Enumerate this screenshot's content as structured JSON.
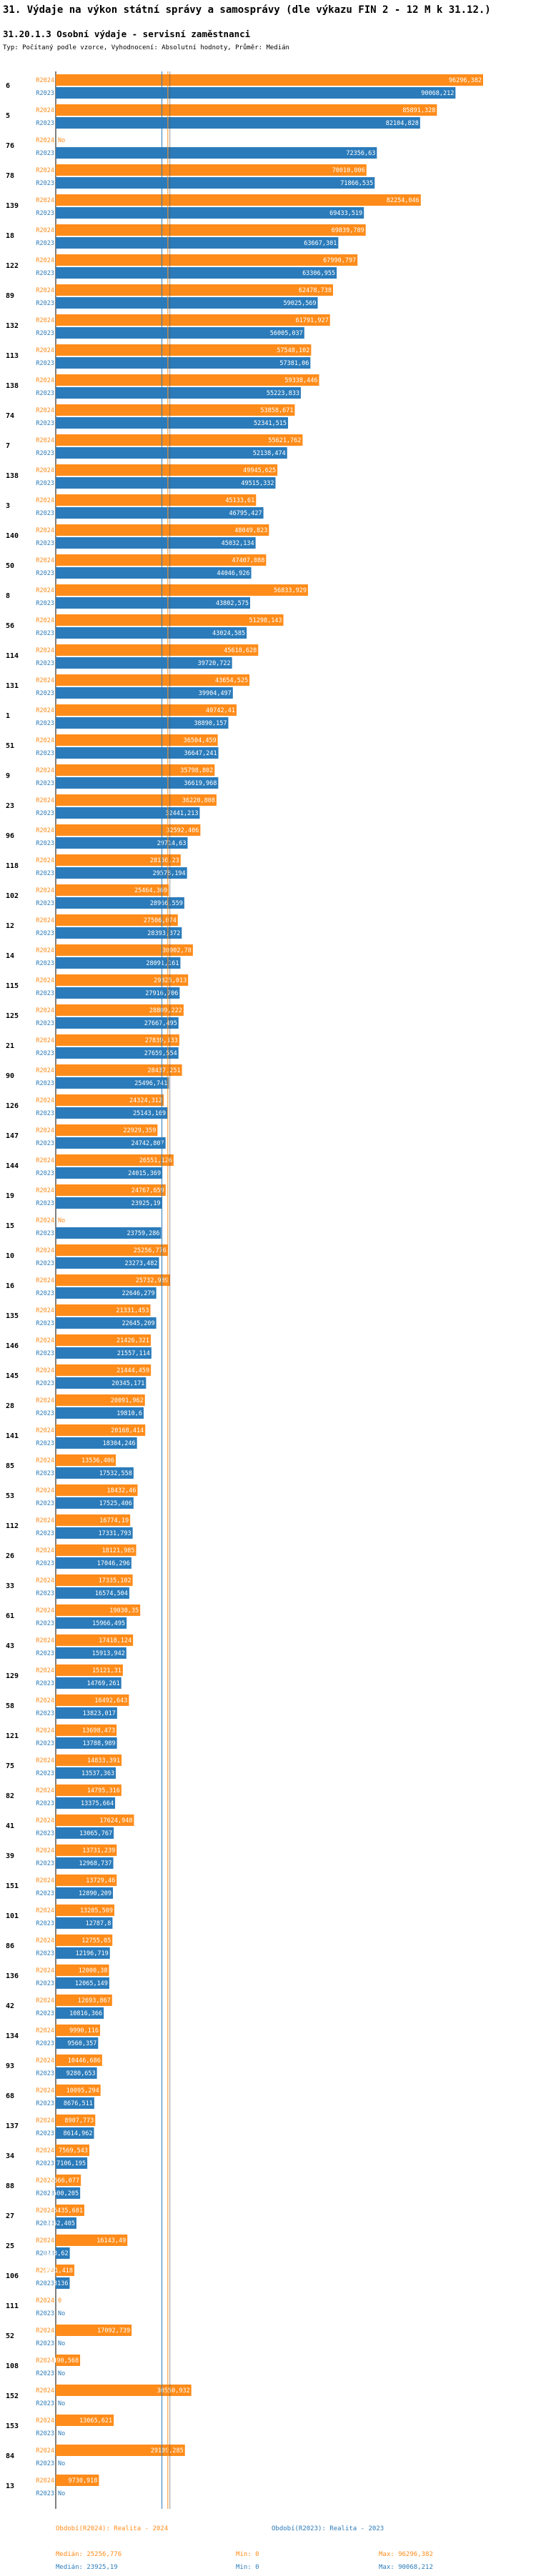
{
  "page": {
    "title": "31. Výdaje na výkon státní správy a samosprávy (dle výkazu FIN 2 - 12 M k 31.12.)",
    "subtitle": "31.20.1.3 Osobní výdaje - servisní zaměstnanci",
    "note": "Typ: Počítaný podle vzorce, Vyhodnocení: Absolutní hodnoty, Průměr: Medián"
  },
  "colors": {
    "s2024": "#ff8c1a",
    "s2023": "#2b7bba"
  },
  "legend": [
    {
      "label": "Období(R2024): Realita - 2024",
      "median": "Medián: 25256,776",
      "min": "Min: 0",
      "max": "Max: 96296,382"
    },
    {
      "label": "Období(R2023): Realita - 2023",
      "median": "Medián: 23925,19",
      "min": "Min: 0",
      "max": "Max: 90068,212"
    }
  ],
  "chart_data": {
    "type": "bar",
    "orientation": "horizontal",
    "xlim": [
      0,
      96296.382
    ],
    "reference_lines": {
      "median_2024": 25256.776,
      "median_2023": 23925.19
    },
    "row_labels": [
      "R2024",
      "R2023"
    ],
    "no_value_label": "No",
    "categories": [
      {
        "id": "6",
        "v2024": 96296.382,
        "t2024": "96296,382",
        "v2023": 90068.212,
        "t2023": "90068,212"
      },
      {
        "id": "5",
        "v2024": 85891.328,
        "t2024": "85891,328",
        "v2023": 82104.828,
        "t2023": "82104,828"
      },
      {
        "id": "76",
        "v2024": null,
        "t2024": "No",
        "v2023": 72356.63,
        "t2023": "72356,63"
      },
      {
        "id": "78",
        "v2024": 70010.006,
        "t2024": "70010,006",
        "v2023": 71866.535,
        "t2023": "71866,535"
      },
      {
        "id": "139",
        "v2024": 82254.046,
        "t2024": "82254,046",
        "v2023": 69433.519,
        "t2023": "69433,519"
      },
      {
        "id": "18",
        "v2024": 69839.789,
        "t2024": "69839,789",
        "v2023": 63667.301,
        "t2023": "63667,301"
      },
      {
        "id": "122",
        "v2024": 67990.797,
        "t2024": "67990,797",
        "v2023": 63306.955,
        "t2023": "63306,955"
      },
      {
        "id": "89",
        "v2024": 62478.738,
        "t2024": "62478,738",
        "v2023": 59025.569,
        "t2023": "59025,569"
      },
      {
        "id": "132",
        "v2024": 61791.927,
        "t2024": "61791,927",
        "v2023": 56005.037,
        "t2023": "56005,037"
      },
      {
        "id": "113",
        "v2024": 57548.102,
        "t2024": "57548,102",
        "v2023": 57381.06,
        "t2023": "57381,06"
      },
      {
        "id": "138",
        "v2024": 59338.446,
        "t2024": "59338,446",
        "v2023": 55223.833,
        "t2023": "55223,833"
      },
      {
        "id": "74",
        "v2024": 53858.671,
        "t2024": "53858,671",
        "v2023": 52341.515,
        "t2023": "52341,515"
      },
      {
        "id": "7",
        "v2024": 55621.762,
        "t2024": "55621,762",
        "v2023": 52138.474,
        "t2023": "52138,474"
      },
      {
        "id": "138",
        "v2024": 49945.625,
        "t2024": "49945,625",
        "v2023": 49515.332,
        "t2023": "49515,332"
      },
      {
        "id": "3",
        "v2024": 45133.61,
        "t2024": "45133,61",
        "v2023": 46795.427,
        "t2023": "46795,427"
      },
      {
        "id": "140",
        "v2024": 48049.823,
        "t2024": "48049,823",
        "v2023": 45032.134,
        "t2023": "45032,134"
      },
      {
        "id": "50",
        "v2024": 47407.088,
        "t2024": "47407,088",
        "v2023": 44046.926,
        "t2023": "44046,926"
      },
      {
        "id": "8",
        "v2024": 56833.929,
        "t2024": "56833,929",
        "v2023": 43802.575,
        "t2023": "43802,575"
      },
      {
        "id": "56",
        "v2024": 51298.143,
        "t2024": "51298,143",
        "v2023": 43024.585,
        "t2023": "43024,585"
      },
      {
        "id": "114",
        "v2024": 45618.628,
        "t2024": "45618,628",
        "v2023": 39720.722,
        "t2023": "39720,722"
      },
      {
        "id": "131",
        "v2024": 43654.525,
        "t2024": "43654,525",
        "v2023": 39904.497,
        "t2023": "39904,497"
      },
      {
        "id": "1",
        "v2024": 40742.41,
        "t2024": "40742,41",
        "v2023": 38890.157,
        "t2023": "38890,157"
      },
      {
        "id": "51",
        "v2024": 36504.459,
        "t2024": "36504,459",
        "v2023": 36647.241,
        "t2023": "36647,241"
      },
      {
        "id": "9",
        "v2024": 35798.802,
        "t2024": "35798,802",
        "v2023": 36619.968,
        "t2023": "36619,968"
      },
      {
        "id": "23",
        "v2024": 36220.808,
        "t2024": "36220,808",
        "v2023": 32441.213,
        "t2023": "32441,213"
      },
      {
        "id": "96",
        "v2024": 32592.406,
        "t2024": "32592,406",
        "v2023": 29714.63,
        "t2023": "29714,63"
      },
      {
        "id": "118",
        "v2024": 28150.23,
        "t2024": "28150,23",
        "v2023": 29578.194,
        "t2023": "29578,194"
      },
      {
        "id": "102",
        "v2024": 25464.369,
        "t2024": "25464,369",
        "v2023": 28966.559,
        "t2023": "28966,559"
      },
      {
        "id": "12",
        "v2024": 27506.074,
        "t2024": "27506,074",
        "v2023": 28393.372,
        "t2023": "28393,372"
      },
      {
        "id": "14",
        "v2024": 30902.78,
        "t2024": "30902,78",
        "v2023": 28091.161,
        "t2023": "28091,161"
      },
      {
        "id": "115",
        "v2024": 29825.013,
        "t2024": "29825,013",
        "v2023": 27916.706,
        "t2023": "27916,706"
      },
      {
        "id": "125",
        "v2024": 28809.222,
        "t2024": "28809,222",
        "v2023": 27667.495,
        "t2023": "27667,495"
      },
      {
        "id": "21",
        "v2024": 27839.133,
        "t2024": "27839,133",
        "v2023": 27659.554,
        "t2023": "27659,554"
      },
      {
        "id": "90",
        "v2024": 28437.251,
        "t2024": "28437,251",
        "v2023": 25496.741,
        "t2023": "25496,741"
      },
      {
        "id": "126",
        "v2024": 24324.312,
        "t2024": "24324,312",
        "v2023": 25143.169,
        "t2023": "25143,169"
      },
      {
        "id": "147",
        "v2024": 22929.359,
        "t2024": "22929,359",
        "v2023": 24742.807,
        "t2023": "24742,807"
      },
      {
        "id": "144",
        "v2024": 26551.126,
        "t2024": "26551,126",
        "v2023": 24015.369,
        "t2023": "24015,369"
      },
      {
        "id": "19",
        "v2024": 24767.659,
        "t2024": "24767,659",
        "v2023": 23925.19,
        "t2023": "23925,19"
      },
      {
        "id": "15",
        "v2024": null,
        "t2024": "No",
        "v2023": 23759.286,
        "t2023": "23759,286"
      },
      {
        "id": "10",
        "v2024": 25256.776,
        "t2024": "25256,776",
        "v2023": 23273.482,
        "t2023": "23273,482"
      },
      {
        "id": "16",
        "v2024": 25732.989,
        "t2024": "25732,989",
        "v2023": 22646.279,
        "t2023": "22646,279"
      },
      {
        "id": "135",
        "v2024": 21331.453,
        "t2024": "21331,453",
        "v2023": 22645.209,
        "t2023": "22645,209"
      },
      {
        "id": "146",
        "v2024": 21426.321,
        "t2024": "21426,321",
        "v2023": 21557.114,
        "t2023": "21557,114"
      },
      {
        "id": "145",
        "v2024": 21444.459,
        "t2024": "21444,459",
        "v2023": 20345.171,
        "t2023": "20345,171"
      },
      {
        "id": "28",
        "v2024": 20091.962,
        "t2024": "20091,962",
        "v2023": 19810.6,
        "t2023": "19810,6"
      },
      {
        "id": "141",
        "v2024": 20168.414,
        "t2024": "20168,414",
        "v2023": 18304.246,
        "t2023": "18304,246"
      },
      {
        "id": "85",
        "v2024": 13536.406,
        "t2024": "13536,406",
        "v2023": 17532.558,
        "t2023": "17532,558"
      },
      {
        "id": "53",
        "v2024": 18432.46,
        "t2024": "18432,46",
        "v2023": 17525.406,
        "t2023": "17525,406"
      },
      {
        "id": "112",
        "v2024": 16774.19,
        "t2024": "16774,19",
        "v2023": 17331.793,
        "t2023": "17331,793"
      },
      {
        "id": "26",
        "v2024": 18121.985,
        "t2024": "18121,985",
        "v2023": 17046.296,
        "t2023": "17046,296"
      },
      {
        "id": "33",
        "v2024": 17335.102,
        "t2024": "17335,102",
        "v2023": 16574.504,
        "t2023": "16574,504"
      },
      {
        "id": "61",
        "v2024": 19030.35,
        "t2024": "19030,35",
        "v2023": 15966.495,
        "t2023": "15966,495"
      },
      {
        "id": "43",
        "v2024": 17418.124,
        "t2024": "17418,124",
        "v2023": 15913.942,
        "t2023": "15913,942"
      },
      {
        "id": "129",
        "v2024": 15121.31,
        "t2024": "15121,31",
        "v2023": 14769.261,
        "t2023": "14769,261"
      },
      {
        "id": "58",
        "v2024": 16492.643,
        "t2024": "16492,643",
        "v2023": 13823.017,
        "t2023": "13823,017"
      },
      {
        "id": "121",
        "v2024": 13698.473,
        "t2024": "13698,473",
        "v2023": 13788.989,
        "v2023t": "",
        "t2023": "13788,989"
      },
      {
        "id": "75",
        "v2024": 14833.391,
        "t2024": "14833,391",
        "v2023": 13537.363,
        "t2023": "13537,363"
      },
      {
        "id": "82",
        "v2024": 14795.316,
        "t2024": "14795,316",
        "v2023": 13375.664,
        "t2023": "13375,664"
      },
      {
        "id": "41",
        "v2024": 17624.948,
        "t2024": "17624,948",
        "v2023": 13065.767,
        "t2023": "13065,767"
      },
      {
        "id": "39",
        "v2024": 13731.239,
        "t2024": "13731,239",
        "v2023": 12968.737,
        "t2023": "12968,737"
      },
      {
        "id": "151",
        "v2024": 13729.46,
        "t2024": "13729,46",
        "v2023": 12890.209,
        "t2023": "12890,209"
      },
      {
        "id": "101",
        "v2024": 13205.509,
        "t2024": "13205,509",
        "v2023": 12787.8,
        "t2023": "12787,8"
      },
      {
        "id": "86",
        "v2024": 12755.05,
        "t2024": "12755,05",
        "v2023": 12196.719,
        "t2023": "12196,719"
      },
      {
        "id": "136",
        "v2024": 12000.38,
        "t2024": "12000,38",
        "v2023": 12065.149,
        "t2023": "12065,149"
      },
      {
        "id": "42",
        "v2024": 12693.867,
        "t2024": "12693,867",
        "v2023": 10816.366,
        "t2023": "10816,366"
      },
      {
        "id": "134",
        "v2024": 9990.116,
        "t2024": "9990,116",
        "v2023": 9560.357,
        "t2023": "9560,357"
      },
      {
        "id": "93",
        "v2024": 10446.686,
        "t2024": "10446,686",
        "v2023": 9280.653,
        "t2023": "9280,653"
      },
      {
        "id": "68",
        "v2024": 10095.294,
        "t2024": "10095,294",
        "v2023": 8676.511,
        "t2023": "8676,511"
      },
      {
        "id": "137",
        "v2024": 8907.773,
        "t2024": "8907,773",
        "v2023": 8614.962,
        "t2023": "8614,962"
      },
      {
        "id": "34",
        "v2024": 7569.543,
        "t2024": "7569,543",
        "v2023": 7106.195,
        "t2023": "7106,195"
      },
      {
        "id": "88",
        "v2024": 5666.077,
        "t2024": "5666,077",
        "v2023": 5500.205,
        "t2023": "5500,205"
      },
      {
        "id": "27",
        "v2024": 6435.681,
        "t2024": "6435,681",
        "v2023": 4662.405,
        "t2023": "4662,405"
      },
      {
        "id": "25",
        "v2024": 16143.49,
        "t2024": "16143,49",
        "v2023": 3163.62,
        "t2023": "3163,62"
      },
      {
        "id": "106",
        "v2024": 4191.418,
        "t2024": "4191,418",
        "v2023": 3136,
        "t2023": "3136"
      },
      {
        "id": "111",
        "v2024": 0,
        "t2024": "0",
        "v2023": null,
        "t2023": "No"
      },
      {
        "id": "52",
        "v2024": 17092.739,
        "t2024": "17092,739",
        "v2023": null,
        "t2023": "No"
      },
      {
        "id": "108",
        "v2024": 5490.568,
        "t2024": "5490,568",
        "v2023": null,
        "t2023": "No"
      },
      {
        "id": "152",
        "v2024": 30550.932,
        "t2024": "30550,932",
        "v2023": null,
        "t2023": "No"
      },
      {
        "id": "153",
        "v2024": 13065.621,
        "t2024": "13065,621",
        "v2023": null,
        "t2023": "No"
      },
      {
        "id": "84",
        "v2024": 29109.285,
        "t2024": "29109,285",
        "v2023": null,
        "t2023": "No"
      },
      {
        "id": "13",
        "v2024": 9730.918,
        "t2024": "9730,918",
        "v2023": null,
        "t2023": "No"
      }
    ]
  }
}
